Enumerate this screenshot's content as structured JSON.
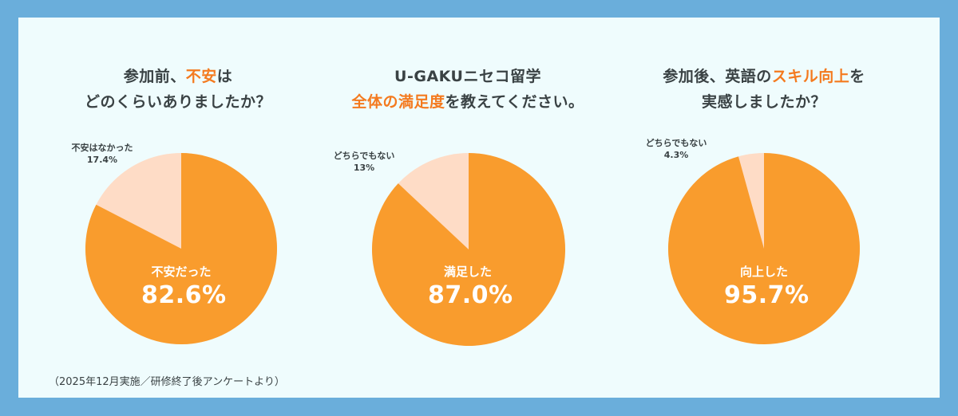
{
  "colors": {
    "frame": "#6aaedb",
    "panel": "#effcfd",
    "major_slice": "#f99c2d",
    "minor_slice": "#fedcc6",
    "highlight_text": "#f47a1f",
    "text": "#3a4244"
  },
  "charts": [
    {
      "title_line1_pre": "参加前、",
      "title_line1_hl": "不安",
      "title_line1_post": "は",
      "title_line2_pre": "",
      "title_line2_hl": "",
      "title_line2_post": "どのくらいありましたか？",
      "major_label": "不安だった",
      "major_value": "82.6%",
      "minor_label": "不安はなかった",
      "minor_value": "17.4%"
    },
    {
      "title_line1_pre": "U-GAKUニセコ留学",
      "title_line1_hl": "",
      "title_line1_post": "",
      "title_line2_pre": "",
      "title_line2_hl": "全体の満足度",
      "title_line2_post": "を教えてください。",
      "major_label": "満足した",
      "major_value": "87.0%",
      "minor_label": "どちらでもない",
      "minor_value": "13%"
    },
    {
      "title_line1_pre": "参加後、英語の",
      "title_line1_hl": "スキル向上",
      "title_line1_post": "を",
      "title_line2_pre": "",
      "title_line2_hl": "",
      "title_line2_post": "実感しましたか？",
      "major_label": "向上した",
      "major_value": "95.7%",
      "minor_label": "どちらでもない",
      "minor_value": "4.3%"
    }
  ],
  "footnote": "（2025年12月実施／研修終了後アンケートより）",
  "chart_data": [
    {
      "type": "pie",
      "title": "参加前、不安はどのくらいありましたか？",
      "categories": [
        "不安だった",
        "不安はなかった"
      ],
      "values": [
        82.6,
        17.4
      ],
      "start_angle": "12 o'clock, clockwise"
    },
    {
      "type": "pie",
      "title": "U-GAKUニセコ留学 全体の満足度を教えてください。",
      "categories": [
        "満足した",
        "どちらでもない"
      ],
      "values": [
        87.0,
        13.0
      ],
      "start_angle": "12 o'clock, clockwise"
    },
    {
      "type": "pie",
      "title": "参加後、英語のスキル向上を実感しましたか？",
      "categories": [
        "向上した",
        "どちらでもない"
      ],
      "values": [
        95.7,
        4.3
      ],
      "start_angle": "12 o'clock, clockwise"
    }
  ]
}
